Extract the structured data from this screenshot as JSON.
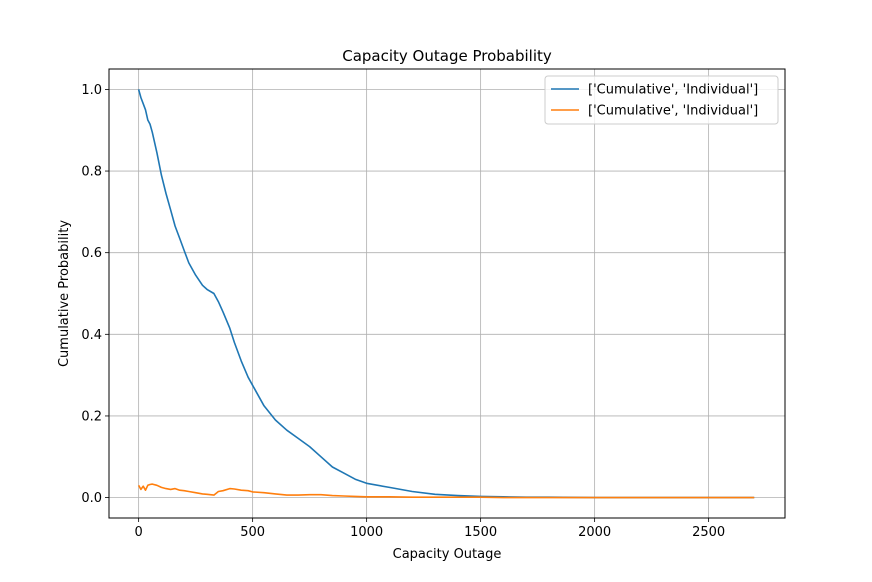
{
  "chart_data": {
    "type": "line",
    "title": "Capacity Outage Probability",
    "xlabel": "Capacity Outage",
    "ylabel": "Cumulative Probability",
    "xlim": [
      -130,
      2835
    ],
    "ylim": [
      -0.05,
      1.05
    ],
    "xticks": [
      0,
      500,
      1000,
      1500,
      2000,
      2500
    ],
    "yticks": [
      0.0,
      0.2,
      0.4,
      0.6,
      0.8,
      1.0
    ],
    "xtick_labels": [
      "0",
      "500",
      "1000",
      "1500",
      "2000",
      "2500"
    ],
    "ytick_labels": [
      "0.0",
      "0.2",
      "0.4",
      "0.6",
      "0.8",
      "1.0"
    ],
    "grid": true,
    "legend_position": "top-right",
    "series": [
      {
        "name": "['Cumulative', 'Individual']",
        "color": "#1f77b4",
        "x": [
          0,
          10,
          20,
          30,
          40,
          50,
          60,
          80,
          100,
          120,
          140,
          160,
          180,
          200,
          220,
          250,
          280,
          300,
          330,
          350,
          370,
          400,
          420,
          450,
          480,
          500,
          550,
          600,
          650,
          700,
          750,
          800,
          850,
          900,
          950,
          1000,
          1100,
          1200,
          1300,
          1400,
          1500,
          1600,
          1700,
          1800,
          2000,
          2200,
          2400,
          2700
        ],
        "values": [
          1.0,
          0.98,
          0.965,
          0.95,
          0.925,
          0.915,
          0.895,
          0.845,
          0.79,
          0.745,
          0.705,
          0.665,
          0.635,
          0.605,
          0.575,
          0.545,
          0.52,
          0.51,
          0.5,
          0.48,
          0.455,
          0.415,
          0.38,
          0.335,
          0.295,
          0.275,
          0.225,
          0.19,
          0.165,
          0.145,
          0.125,
          0.1,
          0.075,
          0.06,
          0.045,
          0.035,
          0.025,
          0.015,
          0.008,
          0.005,
          0.003,
          0.002,
          0.001,
          0.001,
          0.0,
          0.0,
          0.0,
          0.0
        ]
      },
      {
        "name": "['Cumulative', 'Individual']",
        "color": "#ff7f0e",
        "x": [
          0,
          10,
          20,
          30,
          40,
          50,
          60,
          80,
          100,
          120,
          140,
          160,
          180,
          200,
          220,
          250,
          280,
          300,
          330,
          350,
          370,
          400,
          420,
          450,
          480,
          500,
          550,
          600,
          650,
          700,
          750,
          800,
          850,
          900,
          950,
          1000,
          1100,
          1200,
          1300,
          1400,
          1500,
          1600,
          1700,
          1800,
          2000,
          2200,
          2400,
          2700
        ],
        "values": [
          0.03,
          0.02,
          0.028,
          0.018,
          0.03,
          0.032,
          0.033,
          0.03,
          0.025,
          0.022,
          0.02,
          0.022,
          0.018,
          0.017,
          0.015,
          0.012,
          0.009,
          0.008,
          0.006,
          0.015,
          0.017,
          0.022,
          0.021,
          0.018,
          0.017,
          0.014,
          0.012,
          0.009,
          0.006,
          0.006,
          0.007,
          0.007,
          0.005,
          0.004,
          0.003,
          0.002,
          0.002,
          0.001,
          0.001,
          0.001,
          0.001,
          0.0,
          0.0,
          0.0,
          0.0,
          0.0,
          0.0,
          0.0
        ]
      }
    ]
  }
}
